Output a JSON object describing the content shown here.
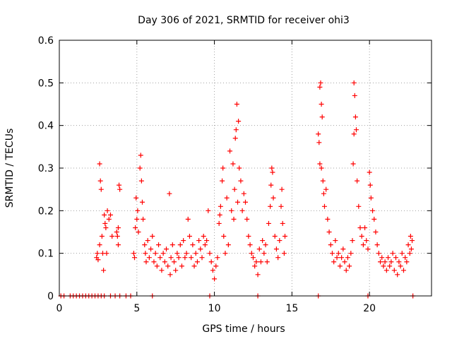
{
  "chart_data": {
    "type": "scatter",
    "title": "Day 306 of 2021, SRMTID for receiver ohi3",
    "xlabel": "GPS time / hours",
    "ylabel": "SRMTID / TECUs",
    "xlim": [
      0,
      24
    ],
    "ylim": [
      0,
      0.6
    ],
    "x_ticks": [
      0,
      5,
      10,
      15,
      20
    ],
    "y_ticks": [
      0,
      0.1,
      0.2,
      0.3,
      0.4,
      0.5,
      0.6
    ],
    "x_tick_labels": [
      "0",
      "5",
      "10",
      "15",
      "20"
    ],
    "y_tick_labels": [
      "0",
      "0.1",
      "0.2",
      "0.3",
      "0.4",
      "0.5",
      "0.6"
    ],
    "grid": true,
    "marker_color": "#ff0000",
    "series": [
      {
        "name": "SRMTID (ohi3)",
        "points": [
          [
            0.1,
            0
          ],
          [
            0.3,
            0
          ],
          [
            0.7,
            0
          ],
          [
            0.9,
            0
          ],
          [
            1.1,
            0
          ],
          [
            1.3,
            0
          ],
          [
            1.5,
            0
          ],
          [
            1.7,
            0
          ],
          [
            1.9,
            0
          ],
          [
            2.1,
            0
          ],
          [
            2.3,
            0
          ],
          [
            2.5,
            0
          ],
          [
            2.7,
            0
          ],
          [
            2.9,
            0
          ],
          [
            3.3,
            0
          ],
          [
            3.6,
            0
          ],
          [
            3.9,
            0
          ],
          [
            4.3,
            0
          ],
          [
            4.6,
            0
          ],
          [
            6.0,
            0
          ],
          [
            9.7,
            0
          ],
          [
            12.8,
            0
          ],
          [
            16.7,
            0
          ],
          [
            19.9,
            0
          ],
          [
            22.8,
            0
          ],
          [
            2.4,
            0.09
          ],
          [
            2.45,
            0.1
          ],
          [
            2.5,
            0.085
          ],
          [
            2.6,
            0.12
          ],
          [
            2.65,
            0.27
          ],
          [
            2.6,
            0.31
          ],
          [
            2.7,
            0.25
          ],
          [
            2.75,
            0.14
          ],
          [
            2.8,
            0.1
          ],
          [
            2.85,
            0.06
          ],
          [
            2.9,
            0.19
          ],
          [
            2.95,
            0.17
          ],
          [
            3.0,
            0.16
          ],
          [
            3.05,
            0.1
          ],
          [
            3.1,
            0.2
          ],
          [
            3.2,
            0.18
          ],
          [
            3.3,
            0.19
          ],
          [
            3.4,
            0.14
          ],
          [
            3.7,
            0.15
          ],
          [
            3.75,
            0.14
          ],
          [
            3.8,
            0.16
          ],
          [
            3.85,
            0.26
          ],
          [
            3.9,
            0.25
          ],
          [
            3.8,
            0.12
          ],
          [
            4.8,
            0.1
          ],
          [
            4.85,
            0.09
          ],
          [
            4.9,
            0.16
          ],
          [
            4.95,
            0.23
          ],
          [
            5.0,
            0.18
          ],
          [
            5.05,
            0.2
          ],
          [
            5.1,
            0.15
          ],
          [
            5.2,
            0.3
          ],
          [
            5.25,
            0.33
          ],
          [
            5.3,
            0.27
          ],
          [
            5.35,
            0.22
          ],
          [
            5.4,
            0.18
          ],
          [
            5.5,
            0.12
          ],
          [
            5.55,
            0.1
          ],
          [
            5.6,
            0.08
          ],
          [
            5.7,
            0.13
          ],
          [
            5.8,
            0.09
          ],
          [
            5.9,
            0.11
          ],
          [
            6.0,
            0.14
          ],
          [
            6.1,
            0.08
          ],
          [
            6.2,
            0.1
          ],
          [
            6.3,
            0.07
          ],
          [
            6.4,
            0.12
          ],
          [
            6.5,
            0.09
          ],
          [
            6.6,
            0.06
          ],
          [
            6.7,
            0.1
          ],
          [
            6.8,
            0.08
          ],
          [
            6.9,
            0.11
          ],
          [
            7.0,
            0.07
          ],
          [
            7.1,
            0.24
          ],
          [
            7.15,
            0.05
          ],
          [
            7.2,
            0.09
          ],
          [
            7.3,
            0.12
          ],
          [
            7.4,
            0.08
          ],
          [
            7.5,
            0.06
          ],
          [
            7.6,
            0.1
          ],
          [
            7.7,
            0.09
          ],
          [
            7.8,
            0.12
          ],
          [
            7.9,
            0.07
          ],
          [
            8.0,
            0.13
          ],
          [
            8.1,
            0.09
          ],
          [
            8.2,
            0.1
          ],
          [
            8.3,
            0.18
          ],
          [
            8.4,
            0.14
          ],
          [
            8.5,
            0.09
          ],
          [
            8.6,
            0.12
          ],
          [
            8.7,
            0.07
          ],
          [
            8.8,
            0.1
          ],
          [
            8.9,
            0.08
          ],
          [
            9.0,
            0.13
          ],
          [
            9.1,
            0.11
          ],
          [
            9.2,
            0.09
          ],
          [
            9.3,
            0.14
          ],
          [
            9.4,
            0.12
          ],
          [
            9.5,
            0.13
          ],
          [
            9.6,
            0.2
          ],
          [
            9.7,
            0.1
          ],
          [
            9.8,
            0.08
          ],
          [
            9.9,
            0.06
          ],
          [
            10.0,
            0.04
          ],
          [
            10.1,
            0.07
          ],
          [
            10.2,
            0.09
          ],
          [
            10.3,
            0.17
          ],
          [
            10.35,
            0.19
          ],
          [
            10.4,
            0.21
          ],
          [
            10.5,
            0.27
          ],
          [
            10.55,
            0.3
          ],
          [
            10.6,
            0.14
          ],
          [
            10.7,
            0.1
          ],
          [
            10.8,
            0.23
          ],
          [
            10.9,
            0.12
          ],
          [
            11.0,
            0.34
          ],
          [
            11.1,
            0.2
          ],
          [
            11.2,
            0.31
          ],
          [
            11.25,
            0.18
          ],
          [
            11.3,
            0.25
          ],
          [
            11.35,
            0.37
          ],
          [
            11.4,
            0.39
          ],
          [
            11.45,
            0.45
          ],
          [
            11.5,
            0.22
          ],
          [
            11.55,
            0.41
          ],
          [
            11.6,
            0.3
          ],
          [
            11.7,
            0.27
          ],
          [
            11.8,
            0.2
          ],
          [
            11.9,
            0.24
          ],
          [
            12.0,
            0.22
          ],
          [
            12.1,
            0.18
          ],
          [
            12.2,
            0.14
          ],
          [
            12.3,
            0.12
          ],
          [
            12.4,
            0.1
          ],
          [
            12.5,
            0.09
          ],
          [
            12.6,
            0.07
          ],
          [
            12.7,
            0.08
          ],
          [
            12.8,
            0.05
          ],
          [
            12.9,
            0.11
          ],
          [
            13.0,
            0.08
          ],
          [
            13.1,
            0.13
          ],
          [
            13.2,
            0.1
          ],
          [
            13.3,
            0.12
          ],
          [
            13.4,
            0.08
          ],
          [
            13.5,
            0.17
          ],
          [
            13.6,
            0.21
          ],
          [
            13.65,
            0.26
          ],
          [
            13.7,
            0.3
          ],
          [
            13.75,
            0.29
          ],
          [
            13.8,
            0.23
          ],
          [
            13.9,
            0.14
          ],
          [
            14.0,
            0.11
          ],
          [
            14.1,
            0.09
          ],
          [
            14.2,
            0.13
          ],
          [
            14.3,
            0.21
          ],
          [
            14.35,
            0.25
          ],
          [
            14.4,
            0.17
          ],
          [
            14.5,
            0.1
          ],
          [
            14.55,
            0.14
          ],
          [
            16.7,
            0.38
          ],
          [
            16.75,
            0.36
          ],
          [
            16.8,
            0.49
          ],
          [
            16.85,
            0.5
          ],
          [
            16.9,
            0.45
          ],
          [
            16.95,
            0.42
          ],
          [
            16.8,
            0.31
          ],
          [
            16.9,
            0.3
          ],
          [
            17.0,
            0.27
          ],
          [
            17.05,
            0.24
          ],
          [
            17.1,
            0.21
          ],
          [
            17.2,
            0.25
          ],
          [
            17.3,
            0.18
          ],
          [
            17.4,
            0.15
          ],
          [
            17.5,
            0.12
          ],
          [
            17.6,
            0.1
          ],
          [
            17.7,
            0.08
          ],
          [
            17.8,
            0.13
          ],
          [
            17.9,
            0.09
          ],
          [
            18.0,
            0.1
          ],
          [
            18.1,
            0.07
          ],
          [
            18.2,
            0.09
          ],
          [
            18.3,
            0.11
          ],
          [
            18.4,
            0.08
          ],
          [
            18.5,
            0.06
          ],
          [
            18.6,
            0.09
          ],
          [
            18.7,
            0.07
          ],
          [
            18.8,
            0.1
          ],
          [
            18.9,
            0.13
          ],
          [
            18.95,
            0.31
          ],
          [
            19.0,
            0.5
          ],
          [
            19.05,
            0.47
          ],
          [
            19.1,
            0.42
          ],
          [
            19.15,
            0.39
          ],
          [
            19.0,
            0.38
          ],
          [
            19.2,
            0.27
          ],
          [
            19.3,
            0.21
          ],
          [
            19.4,
            0.16
          ],
          [
            19.5,
            0.14
          ],
          [
            19.6,
            0.12
          ],
          [
            19.7,
            0.16
          ],
          [
            19.8,
            0.13
          ],
          [
            19.9,
            0.11
          ],
          [
            20.0,
            0.29
          ],
          [
            20.05,
            0.26
          ],
          [
            20.1,
            0.23
          ],
          [
            20.2,
            0.2
          ],
          [
            20.3,
            0.18
          ],
          [
            20.4,
            0.15
          ],
          [
            20.5,
            0.12
          ],
          [
            20.6,
            0.1
          ],
          [
            20.7,
            0.08
          ],
          [
            20.8,
            0.09
          ],
          [
            20.9,
            0.07
          ],
          [
            21.0,
            0.08
          ],
          [
            21.1,
            0.06
          ],
          [
            21.2,
            0.09
          ],
          [
            21.3,
            0.07
          ],
          [
            21.4,
            0.08
          ],
          [
            21.5,
            0.1
          ],
          [
            21.6,
            0.06
          ],
          [
            21.7,
            0.09
          ],
          [
            21.8,
            0.05
          ],
          [
            21.9,
            0.08
          ],
          [
            22.0,
            0.07
          ],
          [
            22.1,
            0.1
          ],
          [
            22.2,
            0.06
          ],
          [
            22.3,
            0.09
          ],
          [
            22.4,
            0.08
          ],
          [
            22.5,
            0.12
          ],
          [
            22.6,
            0.1
          ],
          [
            22.65,
            0.14
          ],
          [
            22.7,
            0.11
          ],
          [
            22.75,
            0.13
          ]
        ]
      }
    ]
  }
}
